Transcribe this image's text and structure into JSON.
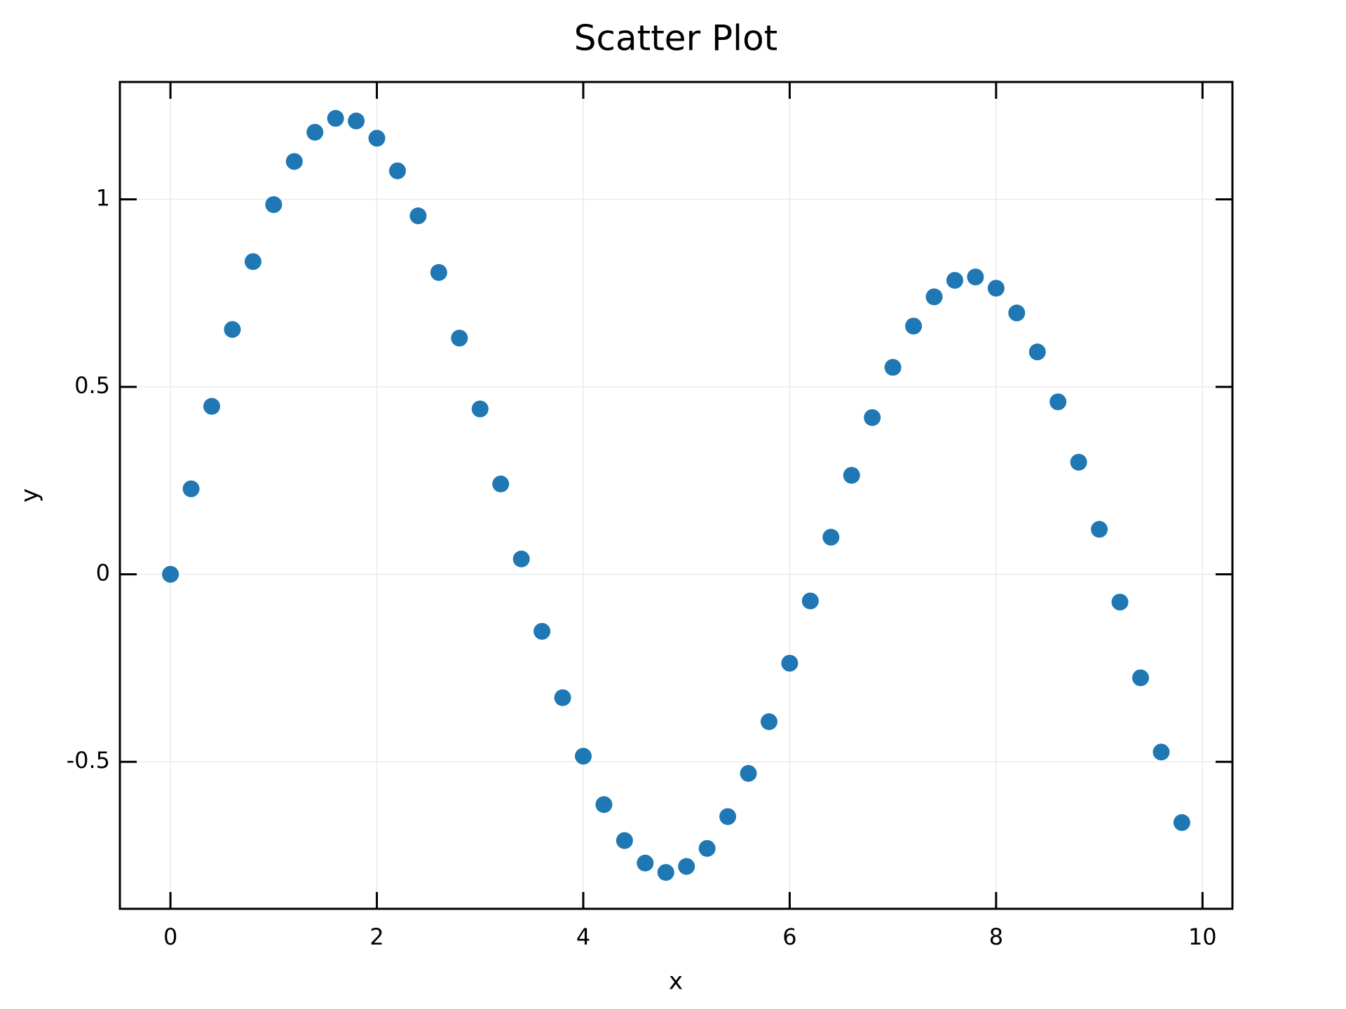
{
  "chart_data": {
    "type": "scatter",
    "title": "Scatter Plot",
    "xlabel": "x",
    "ylabel": "y",
    "color": "#1f77b4",
    "x": [
      0,
      0.2,
      0.4,
      0.6,
      0.8,
      1.0,
      1.2,
      1.4,
      1.6,
      1.8,
      2.0,
      2.2,
      2.4,
      2.6,
      2.8,
      3.0,
      3.2,
      3.4,
      3.6,
      3.8,
      4.0,
      4.2,
      4.4,
      4.6,
      4.8,
      5.0,
      5.2,
      5.4,
      5.6,
      5.8,
      6.0,
      6.2,
      6.4,
      6.6,
      6.8,
      7.0,
      7.2,
      7.4,
      7.6,
      7.8,
      8.0,
      8.2,
      8.4,
      8.6,
      8.8,
      9.0,
      9.2,
      9.4,
      9.6,
      9.8
    ],
    "values": [
      0,
      0.228,
      0.448,
      0.653,
      0.834,
      0.986,
      1.101,
      1.179,
      1.216,
      1.209,
      1.163,
      1.076,
      0.956,
      0.805,
      0.63,
      0.441,
      0.241,
      0.041,
      -0.152,
      -0.329,
      -0.485,
      -0.614,
      -0.71,
      -0.77,
      -0.795,
      -0.779,
      -0.731,
      -0.646,
      -0.531,
      -0.393,
      -0.237,
      -0.071,
      0.099,
      0.264,
      0.418,
      0.552,
      0.662,
      0.74,
      0.784,
      0.793,
      0.763,
      0.697,
      0.593,
      0.46,
      0.299,
      0.12,
      -0.074,
      -0.276,
      -0.474,
      -0.662
    ],
    "xlim": [
      -0.49,
      10.29
    ],
    "ylim": [
      -0.892,
      1.313
    ],
    "xticks": [
      0,
      2,
      4,
      6,
      8,
      10
    ],
    "yticks": [
      -0.5,
      0,
      0.5,
      1
    ],
    "grid": true
  }
}
